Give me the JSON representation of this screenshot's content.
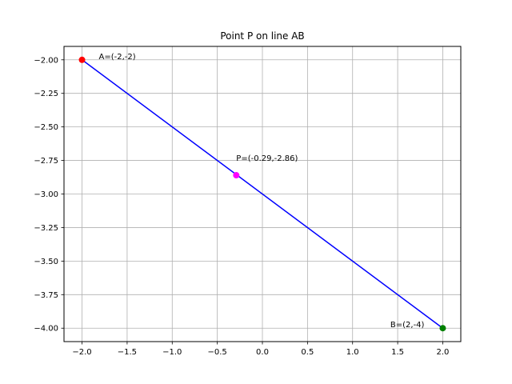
{
  "chart_data": {
    "type": "line",
    "title": "Point P on line AB",
    "xlabel": "",
    "ylabel": "",
    "xlim": [
      -2.2,
      2.2
    ],
    "ylim": [
      -4.1,
      -1.9
    ],
    "grid": true,
    "x_ticks": [
      -2.0,
      -1.5,
      -1.0,
      -0.5,
      0.0,
      0.5,
      1.0,
      1.5,
      2.0
    ],
    "y_ticks": [
      -2.0,
      -2.25,
      -2.5,
      -2.75,
      -3.0,
      -3.25,
      -3.5,
      -3.75,
      -4.0
    ],
    "x_tick_labels": [
      "−2.0",
      "−1.5",
      "−1.0",
      "−0.5",
      "0.0",
      "0.5",
      "1.0",
      "1.5",
      "2.0"
    ],
    "y_tick_labels": [
      "−2.00",
      "−2.25",
      "−2.50",
      "−2.75",
      "−3.00",
      "−3.25",
      "−3.50",
      "−3.75",
      "−4.00"
    ],
    "series": [
      {
        "x": [
          -2,
          2
        ],
        "y": [
          -2,
          -4
        ],
        "color": "#0000ff"
      }
    ],
    "points": [
      {
        "label": "A=(-2,-2)",
        "x": -2,
        "y": -2,
        "color": "#ff0000"
      },
      {
        "label": "P=(-0.29,-2.86)",
        "x": -0.29,
        "y": -2.86,
        "color": "#ff00ff"
      },
      {
        "label": "B=(2,-4)",
        "x": 2,
        "y": -4,
        "color": "#008000"
      }
    ]
  }
}
